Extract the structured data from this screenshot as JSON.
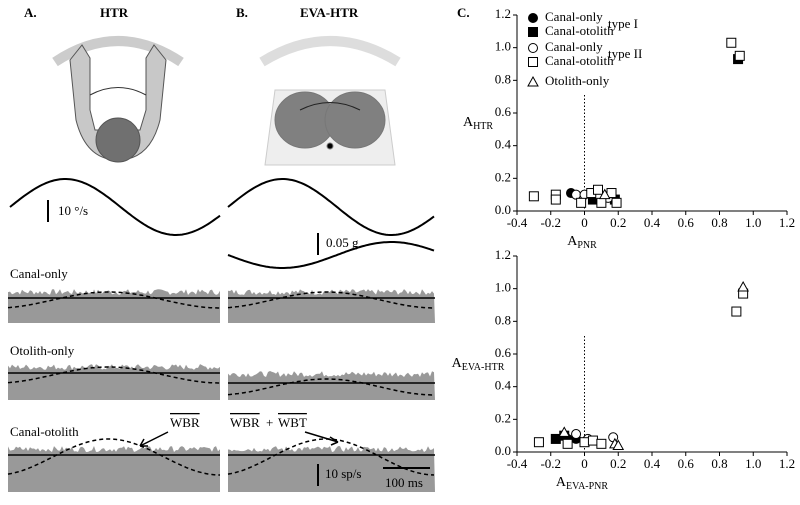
{
  "panels": {
    "a_label": "A.",
    "a_title": "HTR",
    "b_label": "B.",
    "b_title": "EVA-HTR",
    "c_label": "C.",
    "velocity_scale": "10 °/s",
    "accel_scale": "0.05 g",
    "row1": "Canal-only",
    "row2": "Otolith-only",
    "row3": "Canal-otolith",
    "arrow_a": "WBR",
    "arrow_b1": "WBR",
    "arrow_b_plus": "+",
    "arrow_b2": "WBT",
    "rate_scale": "10 sp/s",
    "time_scale": "100 ms"
  },
  "chart_data": [
    {
      "type": "scatter",
      "xlabel": {
        "main": "A",
        "sub": "PNR"
      },
      "ylabel": {
        "main": "A",
        "sub": "HTR"
      },
      "xlim": [
        -0.4,
        1.2
      ],
      "ylim": [
        0,
        1.2
      ],
      "xticks": [
        -0.4,
        -0.2,
        0,
        0.2,
        0.4,
        0.6,
        0.8,
        {
          "value": 1,
          "label": "1.0"
        },
        1.2
      ],
      "yticks": [
        {
          "value": 0,
          "label": "0.0"
        },
        0.2,
        0.4,
        0.6,
        0.8,
        {
          "value": 1,
          "label": "1.0"
        },
        1.2
      ],
      "reference_x": 0,
      "legend": true,
      "legend_groups": [
        "type I",
        "type II"
      ],
      "series": [
        {
          "name": "Canal-only",
          "marker": "circle",
          "filled": true,
          "x": [
            -0.08
          ],
          "y": [
            0.11
          ]
        },
        {
          "name": "Canal-otolith",
          "marker": "square",
          "filled": true,
          "x": [
            0.05,
            0.18,
            0.91
          ],
          "y": [
            0.07,
            0.07,
            0.93
          ]
        },
        {
          "name": "Canal-only",
          "marker": "circle",
          "filled": false,
          "x": [
            -0.05,
            0,
            0.08,
            0.14
          ],
          "y": [
            0.1,
            0.1,
            0.1,
            0.08
          ]
        },
        {
          "name": "Canal-otolith",
          "marker": "square",
          "filled": false,
          "x": [
            -0.3,
            -0.17,
            -0.17,
            -0.02,
            0.04,
            0.08,
            0.1,
            0.16,
            0.19,
            0.87,
            0.92
          ],
          "y": [
            0.09,
            0.1,
            0.07,
            0.05,
            0.11,
            0.13,
            0.05,
            0.11,
            0.05,
            1.03,
            0.95
          ]
        },
        {
          "name": "Otolith-only",
          "marker": "triangle",
          "filled": false,
          "x": [
            0.12
          ],
          "y": [
            0.1
          ]
        }
      ]
    },
    {
      "type": "scatter",
      "xlabel": {
        "main": "A",
        "sub": "EVA-PNR"
      },
      "ylabel": {
        "main": "A",
        "sub": "EVA-HTR"
      },
      "xlim": [
        -0.4,
        1.2
      ],
      "ylim": [
        0,
        1.2
      ],
      "xticks": [
        -0.4,
        -0.2,
        0,
        0.2,
        0.4,
        0.6,
        0.8,
        {
          "value": 1,
          "label": "1.0"
        },
        1.2
      ],
      "yticks": [
        {
          "value": 0,
          "label": "0.0"
        },
        0.2,
        0.4,
        0.6,
        0.8,
        {
          "value": 1,
          "label": "1.0"
        },
        1.2
      ],
      "reference_x": 0,
      "legend": false,
      "series": [
        {
          "name": "Canal-only",
          "marker": "circle",
          "filled": true,
          "x": [
            -0.1,
            -0.05
          ],
          "y": [
            0.08,
            0.08
          ]
        },
        {
          "name": "Canal-otolith",
          "marker": "square",
          "filled": true,
          "x": [
            -0.17,
            -0.12
          ],
          "y": [
            0.08,
            0.1
          ]
        },
        {
          "name": "Canal-only",
          "marker": "circle",
          "filled": false,
          "x": [
            -0.05,
            0.02,
            0.17
          ],
          "y": [
            0.11,
            0.08,
            0.09
          ]
        },
        {
          "name": "Canal-otolith",
          "marker": "square",
          "filled": false,
          "x": [
            -0.27,
            -0.1,
            0,
            0.05,
            0.1,
            0.9,
            0.94
          ],
          "y": [
            0.06,
            0.05,
            0.06,
            0.07,
            0.05,
            0.86,
            0.97
          ]
        },
        {
          "name": "Otolith-only",
          "marker": "triangle",
          "filled": false,
          "x": [
            -0.12,
            0.18,
            0.2,
            0.94
          ],
          "y": [
            0.12,
            0.05,
            0.04,
            1.01
          ]
        }
      ]
    }
  ]
}
